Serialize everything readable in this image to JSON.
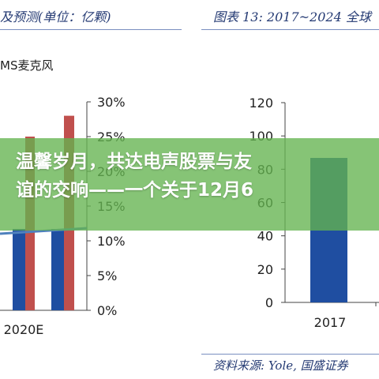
{
  "left_chart": {
    "title": "及预测(单位：亿颗)",
    "legend_partial": "MS麦克风"
  },
  "right_chart": {
    "title": "图表 13: 2017~2024 全球",
    "source": "资料来源: Yole, 国盛证券"
  },
  "banner": {
    "text_line1": "温馨岁月，共达电声股票与友",
    "text_line2": "谊的交响——一个关于12月6"
  },
  "colors": {
    "bar_blue": "#1f4ea1",
    "bar_red": "#c0504d",
    "line_blue": "#4f81bd",
    "title_navy": "#243a73",
    "banner_green": "#64b450"
  },
  "chart_data": [
    {
      "type": "bar",
      "categories": [
        "",
        "2020E"
      ],
      "series": [
        {
          "values": [
            null,
            null
          ]
        },
        {
          "values": [
            null,
            25
          ]
        }
      ],
      "secondary_series": [
        {
          "values": [
            null,
            null
          ]
        }
      ],
      "yticks_right": [
        "30%",
        "25%",
        "20%",
        "15%",
        "10%",
        "5%",
        "0%"
      ],
      "ylim_right": [
        0,
        30
      ]
    },
    {
      "type": "bar",
      "categories": [
        "2017"
      ],
      "series": [
        {
          "values": [
            null
          ]
        }
      ],
      "yticks": [
        "120",
        "100",
        "80",
        "60",
        "40",
        "20",
        "0"
      ],
      "ylim": [
        0,
        120
      ]
    }
  ]
}
